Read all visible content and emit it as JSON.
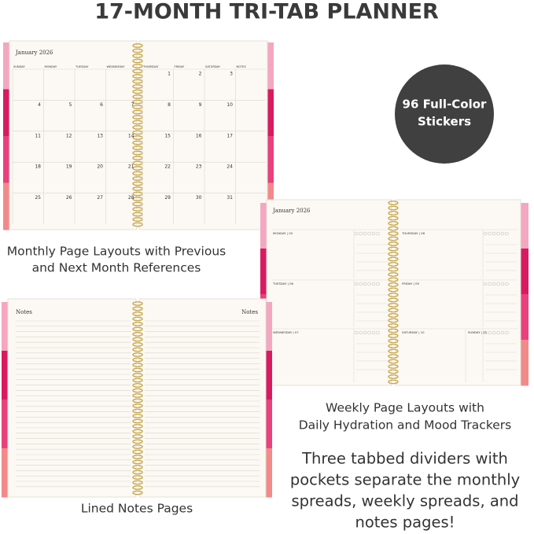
{
  "header": {
    "title": "17-MONTH TRI-TAB PLANNER"
  },
  "badge": {
    "lines": [
      "96 Full-Color",
      "Stickers"
    ]
  },
  "monthly": {
    "month": "January 2026",
    "days": [
      "SUNDAY",
      "MONDAY",
      "TUESDAY",
      "WEDNESDAY",
      "THURSDAY",
      "FRIDAY",
      "SATURDAY",
      "NOTES"
    ],
    "weeks": [
      [
        null,
        null,
        null,
        null,
        1,
        2,
        3
      ],
      [
        4,
        5,
        6,
        7,
        8,
        9,
        10
      ],
      [
        11,
        12,
        13,
        14,
        15,
        16,
        17
      ],
      [
        18,
        19,
        20,
        21,
        22,
        23,
        24
      ],
      [
        25,
        26,
        27,
        28,
        29,
        30,
        31
      ]
    ],
    "caption": [
      "Monthly Page Layouts with Previous",
      "and Next Month References"
    ]
  },
  "weekly": {
    "month": "January 2026",
    "days": [
      "MONDAY | 05",
      "TUESDAY | 06",
      "WEDNESDAY | 07",
      "THURSDAY | 08",
      "FRIDAY | 09",
      "SATURDAY | 10",
      "SUNDAY | 11"
    ],
    "caption": [
      "Weekly Page Layouts with",
      "Daily Hydration and Mood Trackers"
    ]
  },
  "notes": {
    "labels": [
      "Notes",
      "Notes"
    ],
    "caption": "Lined Notes Pages"
  },
  "description": [
    "Three tabbed dividers with",
    "pockets separate the monthly",
    "spreads, weekly spreads, and",
    "notes pages!"
  ]
}
